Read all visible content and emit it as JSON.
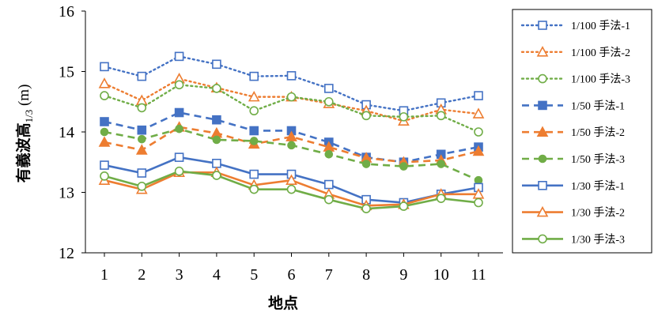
{
  "chart_data": {
    "type": "line",
    "xlabel": "地点",
    "ylabel_main": "有義波高",
    "ylabel_sub": "1/3",
    "ylabel_unit": " (m)",
    "x": [
      1,
      2,
      3,
      4,
      5,
      6,
      7,
      8,
      9,
      10,
      11
    ],
    "ylim": [
      12,
      16
    ],
    "yticks": [
      12,
      13,
      14,
      15,
      16
    ],
    "grid": false,
    "legend_position": "right",
    "series": [
      {
        "name": "1/100 手法-1",
        "color": "#4472C4",
        "dash": "dotted",
        "marker": "square-open",
        "values": [
          15.08,
          14.92,
          15.25,
          15.12,
          14.92,
          14.93,
          14.72,
          14.45,
          14.35,
          14.48,
          14.6
        ]
      },
      {
        "name": "1/100 手法-2",
        "color": "#ED7D31",
        "dash": "dotted",
        "marker": "triangle-open",
        "values": [
          14.8,
          14.52,
          14.88,
          14.73,
          14.58,
          14.58,
          14.47,
          14.35,
          14.18,
          14.37,
          14.3
        ]
      },
      {
        "name": "1/100 手法-3",
        "color": "#70AD47",
        "dash": "dotted",
        "marker": "circle-open",
        "values": [
          14.6,
          14.4,
          14.78,
          14.72,
          14.35,
          14.58,
          14.5,
          14.27,
          14.25,
          14.27,
          14.0
        ]
      },
      {
        "name": "1/50 手法-1",
        "color": "#4472C4",
        "dash": "dashed",
        "marker": "square-filled",
        "values": [
          14.17,
          14.03,
          14.32,
          14.2,
          14.02,
          14.02,
          13.83,
          13.58,
          13.5,
          13.63,
          13.75
        ]
      },
      {
        "name": "1/50 手法-2",
        "color": "#ED7D31",
        "dash": "dashed",
        "marker": "triangle-filled",
        "values": [
          13.83,
          13.7,
          14.08,
          13.98,
          13.8,
          13.92,
          13.75,
          13.57,
          13.5,
          13.53,
          13.68
        ]
      },
      {
        "name": "1/50 手法-3",
        "color": "#70AD47",
        "dash": "dashed",
        "marker": "circle-filled",
        "values": [
          14.0,
          13.88,
          14.05,
          13.87,
          13.85,
          13.78,
          13.63,
          13.47,
          13.43,
          13.47,
          13.2
        ]
      },
      {
        "name": "1/30 手法-1",
        "color": "#4472C4",
        "dash": "solid",
        "marker": "square-open",
        "values": [
          13.45,
          13.32,
          13.58,
          13.48,
          13.3,
          13.3,
          13.13,
          12.88,
          12.83,
          12.97,
          13.08
        ]
      },
      {
        "name": "1/30 手法-2",
        "color": "#ED7D31",
        "dash": "solid",
        "marker": "triangle-open",
        "values": [
          13.2,
          13.05,
          13.33,
          13.33,
          13.12,
          13.2,
          12.97,
          12.78,
          12.8,
          12.97,
          12.97
        ]
      },
      {
        "name": "1/30 手法-3",
        "color": "#70AD47",
        "dash": "solid",
        "marker": "circle-open",
        "values": [
          13.27,
          13.1,
          13.35,
          13.28,
          13.05,
          13.05,
          12.88,
          12.73,
          12.77,
          12.9,
          12.83
        ]
      }
    ]
  }
}
